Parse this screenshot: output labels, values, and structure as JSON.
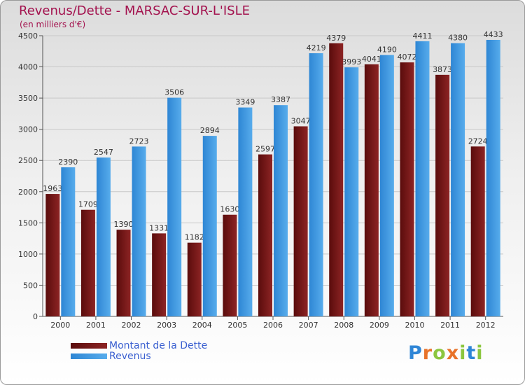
{
  "title": "Revenus/Dette - MARSAC-SUR-L'ISLE",
  "subtitle": "(en milliers d'€)",
  "logo": {
    "letters": [
      "P",
      "r",
      "o",
      "x",
      "i",
      "t",
      "i"
    ],
    "colors": [
      "#2f86d6",
      "#e8732a",
      "#8cc63f",
      "#e8732a",
      "#8cc63f",
      "#2f86d6",
      "#8cc63f"
    ]
  },
  "colors": {
    "dette": "#7a1616",
    "revenus": "#3a96e0",
    "title": "#a3124e",
    "legend_text": "#3a5fd0"
  },
  "chart_data": {
    "type": "bar",
    "categories": [
      "2000",
      "2001",
      "2002",
      "2003",
      "2004",
      "2005",
      "2006",
      "2007",
      "2008",
      "2009",
      "2010",
      "2011",
      "2012"
    ],
    "series": [
      {
        "name": "Montant de la Dette",
        "values": [
          1963,
          1709,
          1390,
          1331,
          1182,
          1630,
          2597,
          3047,
          4379,
          4041,
          4072,
          3873,
          2724
        ],
        "labels": [
          "1963",
          "1709",
          "1390",
          "1331",
          "1182",
          "1630",
          "2597",
          "3047",
          "4379",
          "4041",
          "4072",
          "3873",
          "2724"
        ]
      },
      {
        "name": "Revenus",
        "values": [
          2390,
          2547,
          2723,
          3506,
          2894,
          3349,
          3387,
          4219,
          3993,
          4190,
          4411,
          4380,
          4433
        ],
        "labels": [
          "2390",
          "2547",
          "2723",
          "3506",
          "2894",
          "3349",
          "3387",
          "4219",
          "3993",
          "4190",
          "4411",
          "4380",
          "4433"
        ]
      }
    ],
    "ylim": [
      0,
      4500
    ],
    "yticks": [
      0,
      500,
      1000,
      1500,
      2000,
      2500,
      3000,
      3500,
      4000,
      4500
    ],
    "ytick_labels": [
      "0",
      "500",
      "1000",
      "1500",
      "2000",
      "2500",
      "3000",
      "3500",
      "4000",
      "4500"
    ],
    "grid": true,
    "legend_position": "bottom-left"
  }
}
